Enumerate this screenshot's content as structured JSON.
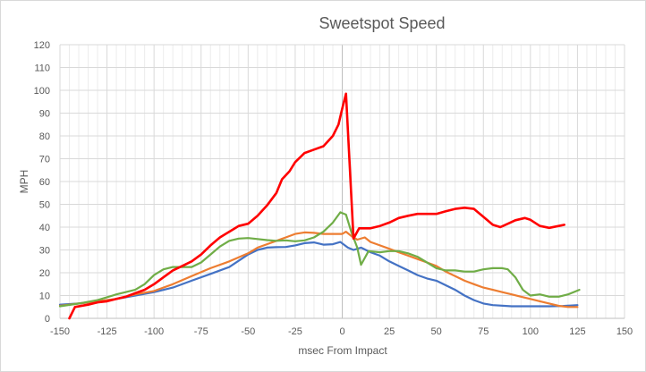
{
  "chart_data": {
    "type": "line",
    "title": "Sweetspot Speed",
    "xlabel": "msec From Impact",
    "ylabel": "MPH",
    "xlim": [
      -150,
      150
    ],
    "ylim": [
      0,
      120
    ],
    "x_ticks": [
      -150,
      -125,
      -100,
      -75,
      -50,
      -25,
      0,
      25,
      50,
      75,
      100,
      125,
      150
    ],
    "x_tick_labels": [
      "-150",
      "-125",
      "-100",
      "-75",
      "-50",
      "-25",
      "0",
      "25",
      "50",
      "75",
      "100",
      "125",
      "150"
    ],
    "y_ticks": [
      0,
      10,
      20,
      30,
      40,
      50,
      60,
      70,
      80,
      90,
      100,
      110,
      120
    ],
    "y_tick_labels": [
      "0",
      "10",
      "20",
      "30",
      "40",
      "50",
      "60",
      "70",
      "80",
      "90",
      "100",
      "110",
      "120"
    ],
    "x_minor_step": 5,
    "grid": true,
    "legend": "none",
    "series": [
      {
        "name": "blue",
        "color": "#4472C4",
        "points": [
          [
            -150,
            6
          ],
          [
            -140,
            6.5
          ],
          [
            -130,
            7.5
          ],
          [
            -120,
            8.5
          ],
          [
            -110,
            10
          ],
          [
            -100,
            11.5
          ],
          [
            -90,
            13.5
          ],
          [
            -80,
            16.5
          ],
          [
            -70,
            19.5
          ],
          [
            -60,
            22.5
          ],
          [
            -50,
            28
          ],
          [
            -45,
            30
          ],
          [
            -40,
            31
          ],
          [
            -35,
            31.2
          ],
          [
            -30,
            31.3
          ],
          [
            -25,
            32
          ],
          [
            -20,
            33
          ],
          [
            -15,
            33.3
          ],
          [
            -10,
            32.3
          ],
          [
            -5,
            32.5
          ],
          [
            -1,
            33.5
          ],
          [
            3,
            31
          ],
          [
            6,
            30
          ],
          [
            10,
            31
          ],
          [
            15,
            29
          ],
          [
            20,
            27.5
          ],
          [
            25,
            25
          ],
          [
            30,
            23
          ],
          [
            35,
            21
          ],
          [
            40,
            19
          ],
          [
            45,
            17.5
          ],
          [
            50,
            16.5
          ],
          [
            55,
            14.5
          ],
          [
            60,
            12.5
          ],
          [
            65,
            10
          ],
          [
            70,
            8
          ],
          [
            75,
            6.5
          ],
          [
            80,
            5.8
          ],
          [
            90,
            5.3
          ],
          [
            100,
            5.3
          ],
          [
            110,
            5.3
          ],
          [
            117,
            5.4
          ],
          [
            125,
            5.8
          ]
        ]
      },
      {
        "name": "orange",
        "color": "#ED7D31",
        "points": [
          [
            -150,
            5.5
          ],
          [
            -140,
            6.5
          ],
          [
            -130,
            7.5
          ],
          [
            -120,
            8.5
          ],
          [
            -110,
            10.5
          ],
          [
            -100,
            12
          ],
          [
            -90,
            15
          ],
          [
            -80,
            18.5
          ],
          [
            -70,
            22
          ],
          [
            -60,
            25
          ],
          [
            -50,
            28.5
          ],
          [
            -45,
            31
          ],
          [
            -40,
            32.5
          ],
          [
            -35,
            34
          ],
          [
            -30,
            35.5
          ],
          [
            -25,
            37
          ],
          [
            -20,
            37.7
          ],
          [
            -15,
            37.5
          ],
          [
            -10,
            37
          ],
          [
            -5,
            37
          ],
          [
            0,
            37
          ],
          [
            2,
            38
          ],
          [
            5,
            36
          ],
          [
            8,
            34.5
          ],
          [
            12,
            35.5
          ],
          [
            15,
            33.5
          ],
          [
            20,
            32
          ],
          [
            25,
            30.5
          ],
          [
            30,
            29
          ],
          [
            35,
            27.5
          ],
          [
            40,
            26
          ],
          [
            45,
            24.5
          ],
          [
            50,
            23
          ],
          [
            55,
            20.5
          ],
          [
            60,
            18.5
          ],
          [
            65,
            16.5
          ],
          [
            70,
            15
          ],
          [
            75,
            13.5
          ],
          [
            80,
            12.5
          ],
          [
            85,
            11.5
          ],
          [
            90,
            10.5
          ],
          [
            95,
            9.5
          ],
          [
            100,
            8.5
          ],
          [
            105,
            7.5
          ],
          [
            110,
            6.5
          ],
          [
            115,
            5.5
          ],
          [
            120,
            5
          ],
          [
            125,
            5
          ]
        ]
      },
      {
        "name": "green",
        "color": "#70AD47",
        "points": [
          [
            -150,
            5.3
          ],
          [
            -140,
            6.5
          ],
          [
            -130,
            8
          ],
          [
            -120,
            10.5
          ],
          [
            -110,
            12.5
          ],
          [
            -105,
            15
          ],
          [
            -100,
            19
          ],
          [
            -95,
            21.5
          ],
          [
            -90,
            22.5
          ],
          [
            -85,
            22.5
          ],
          [
            -80,
            22.5
          ],
          [
            -75,
            24.5
          ],
          [
            -70,
            28
          ],
          [
            -65,
            31.5
          ],
          [
            -60,
            34
          ],
          [
            -55,
            35
          ],
          [
            -50,
            35.2
          ],
          [
            -45,
            34.8
          ],
          [
            -40,
            34.3
          ],
          [
            -35,
            34
          ],
          [
            -30,
            34.2
          ],
          [
            -25,
            33.8
          ],
          [
            -20,
            34.2
          ],
          [
            -15,
            35.5
          ],
          [
            -10,
            38
          ],
          [
            -5,
            42
          ],
          [
            -1,
            46.5
          ],
          [
            2,
            45.5
          ],
          [
            5,
            37.5
          ],
          [
            8,
            31
          ],
          [
            10,
            23.5
          ],
          [
            14,
            29.5
          ],
          [
            20,
            29
          ],
          [
            25,
            29.5
          ],
          [
            30,
            29.5
          ],
          [
            35,
            28.5
          ],
          [
            40,
            27
          ],
          [
            45,
            24.5
          ],
          [
            50,
            22
          ],
          [
            55,
            21
          ],
          [
            60,
            21
          ],
          [
            65,
            20.5
          ],
          [
            70,
            20.5
          ],
          [
            75,
            21.5
          ],
          [
            80,
            22
          ],
          [
            85,
            22
          ],
          [
            88,
            21.5
          ],
          [
            92,
            18
          ],
          [
            96,
            12.5
          ],
          [
            100,
            10
          ],
          [
            105,
            10.5
          ],
          [
            110,
            9.5
          ],
          [
            115,
            9.5
          ],
          [
            120,
            10.5
          ],
          [
            126,
            12.5
          ]
        ]
      },
      {
        "name": "red",
        "color": "#FF0000",
        "points": [
          [
            -145,
            0
          ],
          [
            -142,
            5
          ],
          [
            -135,
            6
          ],
          [
            -130,
            7
          ],
          [
            -125,
            7.5
          ],
          [
            -120,
            8.5
          ],
          [
            -115,
            9.5
          ],
          [
            -110,
            11
          ],
          [
            -105,
            12.5
          ],
          [
            -100,
            15
          ],
          [
            -95,
            18
          ],
          [
            -90,
            21
          ],
          [
            -85,
            23
          ],
          [
            -80,
            25
          ],
          [
            -75,
            28
          ],
          [
            -70,
            32
          ],
          [
            -65,
            35.5
          ],
          [
            -60,
            38
          ],
          [
            -55,
            40.5
          ],
          [
            -50,
            41.5
          ],
          [
            -45,
            45
          ],
          [
            -40,
            49.5
          ],
          [
            -35,
            55
          ],
          [
            -32,
            61
          ],
          [
            -28,
            64.5
          ],
          [
            -25,
            68.5
          ],
          [
            -20,
            72.5
          ],
          [
            -15,
            74
          ],
          [
            -10,
            75.5
          ],
          [
            -5,
            80
          ],
          [
            -2,
            85
          ],
          [
            0,
            92
          ],
          [
            2,
            98.5
          ],
          [
            6,
            35
          ],
          [
            9,
            39.5
          ],
          [
            15,
            39.5
          ],
          [
            20,
            40.5
          ],
          [
            25,
            42
          ],
          [
            30,
            44
          ],
          [
            35,
            45
          ],
          [
            40,
            45.8
          ],
          [
            45,
            45.8
          ],
          [
            50,
            45.8
          ],
          [
            55,
            47
          ],
          [
            60,
            48
          ],
          [
            65,
            48.5
          ],
          [
            70,
            48
          ],
          [
            75,
            44.5
          ],
          [
            80,
            41
          ],
          [
            84,
            40
          ],
          [
            88,
            41.5
          ],
          [
            92,
            43
          ],
          [
            97,
            44
          ],
          [
            100,
            43.2
          ],
          [
            105,
            40.5
          ],
          [
            110,
            39.7
          ],
          [
            115,
            40.5
          ],
          [
            118,
            41
          ]
        ]
      }
    ]
  }
}
